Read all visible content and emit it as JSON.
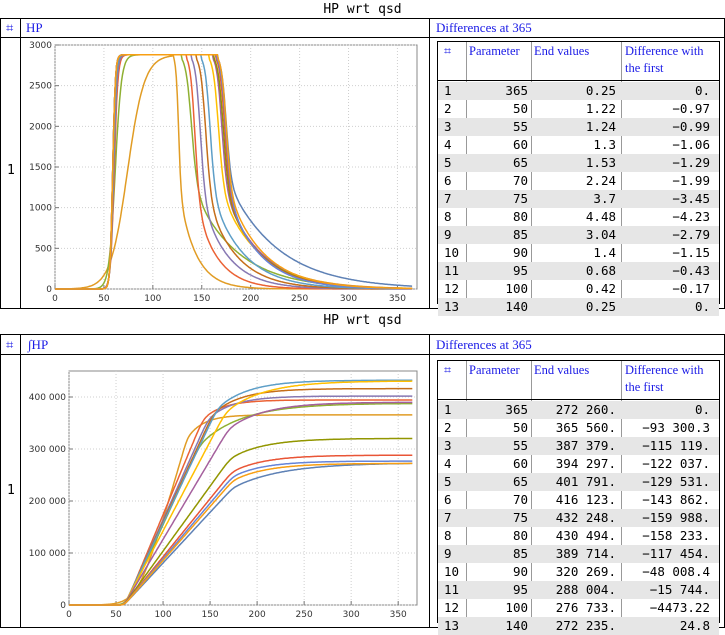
{
  "panels": [
    {
      "title": "HP wrt qsd",
      "header_glyph": "⌗",
      "header_label": "HP",
      "row_label": "1",
      "table_title": "Differences at 365",
      "table": {
        "columns": [
          "⌗",
          "Parameter",
          "End values",
          "Difference with the first"
        ],
        "rows": [
          [
            "1",
            "365",
            "0.25",
            "0."
          ],
          [
            "2",
            "50",
            "1.22",
            "−0.97"
          ],
          [
            "3",
            "55",
            "1.24",
            "−0.99"
          ],
          [
            "4",
            "60",
            "1.3",
            "−1.06"
          ],
          [
            "5",
            "65",
            "1.53",
            "−1.29"
          ],
          [
            "6",
            "70",
            "2.24",
            "−1.99"
          ],
          [
            "7",
            "75",
            "3.7",
            "−3.45"
          ],
          [
            "8",
            "80",
            "4.48",
            "−4.23"
          ],
          [
            "9",
            "85",
            "3.04",
            "−2.79"
          ],
          [
            "10",
            "90",
            "1.4",
            "−1.15"
          ],
          [
            "11",
            "95",
            "0.68",
            "−0.43"
          ],
          [
            "12",
            "100",
            "0.42",
            "−0.17"
          ],
          [
            "13",
            "140",
            "0.25",
            "0."
          ]
        ]
      }
    },
    {
      "title": "HP wrt qsd",
      "header_glyph": "⌗",
      "header_label": "∫HP",
      "row_label": "1",
      "table_title": "Differences at 365",
      "table": {
        "columns": [
          "⌗",
          "Parameter",
          "End values",
          "Difference with the first"
        ],
        "rows": [
          [
            "1",
            "365",
            "272 260.",
            "0."
          ],
          [
            "2",
            "50",
            "365 560.",
            "−93 300.3"
          ],
          [
            "3",
            "55",
            "387 379.",
            "−115 119."
          ],
          [
            "4",
            "60",
            "394 297.",
            "−122 037."
          ],
          [
            "5",
            "65",
            "401 791.",
            "−129 531."
          ],
          [
            "6",
            "70",
            "416 123.",
            "−143 862."
          ],
          [
            "7",
            "75",
            "432 248.",
            "−159 988."
          ],
          [
            "8",
            "80",
            "430 494.",
            "−158 233."
          ],
          [
            "9",
            "85",
            "389 714.",
            "−117 454."
          ],
          [
            "10",
            "90",
            "320 269.",
            "−48 008.4"
          ],
          [
            "11",
            "95",
            "288 004.",
            "−15 744."
          ],
          [
            "12",
            "100",
            "276 733.",
            "−4473.22"
          ],
          [
            "13",
            "140",
            "272 235.",
            "24.8"
          ]
        ]
      }
    }
  ],
  "chart_data": [
    {
      "type": "line",
      "title": "HP wrt qsd",
      "xlim": [
        0,
        370
      ],
      "ylim": [
        0,
        3000
      ],
      "xticks": [
        0,
        50,
        100,
        150,
        200,
        250,
        300,
        350
      ],
      "yticks": [
        0,
        500,
        1000,
        1500,
        2000,
        2500,
        3000
      ],
      "ytick_labels": [
        "0",
        "500",
        "1000",
        "1500",
        "2000",
        "2500",
        "3000"
      ],
      "grid": true,
      "series": [
        {
          "name": "365",
          "color": "#5e81b5",
          "peak": 2880,
          "rise": [
            55,
            63
          ],
          "fall": [
            167,
            182
          ],
          "decay": 52,
          "tail": 0.25
        },
        {
          "name": "50",
          "color": "#e19c24",
          "peak": 2880,
          "rise": [
            48,
            100
          ],
          "fall": [
            122,
            130
          ],
          "decay": 17,
          "tail": 1.22
        },
        {
          "name": "55",
          "color": "#8fb032",
          "peak": 2880,
          "rise": [
            52,
            71
          ],
          "fall": [
            130,
            148
          ],
          "decay": 45,
          "tail": 1.24
        },
        {
          "name": "60",
          "color": "#eb6235",
          "peak": 2880,
          "rise": [
            55,
            66
          ],
          "fall": [
            135,
            150
          ],
          "decay": 22,
          "tail": 1.3
        },
        {
          "name": "65",
          "color": "#8778b3",
          "peak": 2880,
          "rise": [
            55,
            65
          ],
          "fall": [
            140,
            156
          ],
          "decay": 27,
          "tail": 1.53
        },
        {
          "name": "70",
          "color": "#c56e1a",
          "peak": 2880,
          "rise": [
            55,
            64
          ],
          "fall": [
            145,
            162
          ],
          "decay": 30,
          "tail": 2.24
        },
        {
          "name": "75",
          "color": "#5d9ec7",
          "peak": 2880,
          "rise": [
            55,
            64
          ],
          "fall": [
            150,
            166
          ],
          "decay": 33,
          "tail": 3.7
        },
        {
          "name": "80",
          "color": "#ffbf00",
          "peak": 2880,
          "rise": [
            55,
            63
          ],
          "fall": [
            158,
            175
          ],
          "decay": 40,
          "tail": 4.48
        },
        {
          "name": "85",
          "color": "#a5609d",
          "peak": 2880,
          "rise": [
            55,
            63
          ],
          "fall": [
            162,
            178
          ],
          "decay": 38,
          "tail": 3.04
        },
        {
          "name": "90",
          "color": "#929600",
          "peak": 2880,
          "rise": [
            55,
            63
          ],
          "fall": [
            163,
            180
          ],
          "decay": 36,
          "tail": 1.4
        },
        {
          "name": "95",
          "color": "#e95536",
          "peak": 2880,
          "rise": [
            55,
            63
          ],
          "fall": [
            165,
            181
          ],
          "decay": 34,
          "tail": 0.68
        },
        {
          "name": "100",
          "color": "#6685d9",
          "peak": 2880,
          "rise": [
            55,
            63
          ],
          "fall": [
            166,
            182
          ],
          "decay": 33,
          "tail": 0.42
        },
        {
          "name": "140",
          "color": "#f89f13",
          "peak": 2880,
          "rise": [
            55,
            63
          ],
          "fall": [
            167,
            182
          ],
          "decay": 36,
          "tail": 0.25
        }
      ]
    },
    {
      "type": "line",
      "title": "HP wrt qsd",
      "xlim": [
        0,
        370
      ],
      "ylim": [
        0,
        450000
      ],
      "xticks": [
        0,
        50,
        100,
        150,
        200,
        250,
        300,
        350
      ],
      "yticks": [
        0,
        100000,
        200000,
        300000,
        400000
      ],
      "ytick_labels": [
        "0",
        "100 000",
        "200 000",
        "300 000",
        "400 000"
      ],
      "grid": true,
      "series": [
        {
          "name": "365",
          "color": "#5e81b5",
          "final": 272260
        },
        {
          "name": "50",
          "color": "#e19c24",
          "final": 365560
        },
        {
          "name": "55",
          "color": "#8fb032",
          "final": 387379
        },
        {
          "name": "60",
          "color": "#eb6235",
          "final": 394297
        },
        {
          "name": "65",
          "color": "#8778b3",
          "final": 401791
        },
        {
          "name": "70",
          "color": "#c56e1a",
          "final": 416123
        },
        {
          "name": "75",
          "color": "#5d9ec7",
          "final": 432248
        },
        {
          "name": "80",
          "color": "#ffbf00",
          "final": 430494
        },
        {
          "name": "85",
          "color": "#a5609d",
          "final": 389714
        },
        {
          "name": "90",
          "color": "#929600",
          "final": 320269
        },
        {
          "name": "95",
          "color": "#e95536",
          "final": 288004
        },
        {
          "name": "100",
          "color": "#6685d9",
          "final": 276733
        },
        {
          "name": "140",
          "color": "#f89f13",
          "final": 272235
        }
      ]
    }
  ]
}
